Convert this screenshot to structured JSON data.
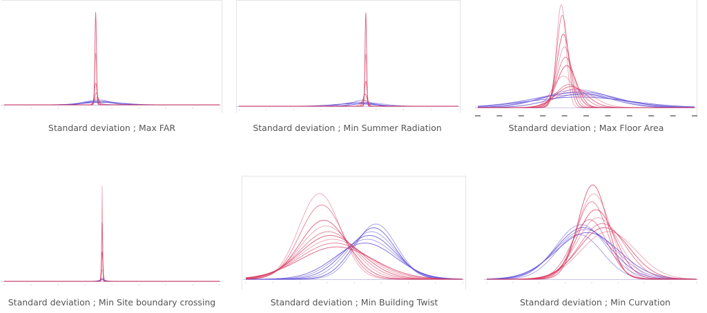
{
  "colors": {
    "red": "#d6335a",
    "blue": "#5a48d6",
    "frame": "#e4e4e4",
    "axis": "#c9c3e6"
  },
  "captions": [
    "Standard deviation ; Max FAR",
    "Standard deviation ; Min Summer Radiation",
    "Standard deviation ; Max Floor Area",
    "Standard deviation ; Min Site boundary crossing",
    "Standard deviation ; Min Building Twist",
    "Standard deviation ; Min Curvation"
  ],
  "chart_data": [
    {
      "type": "line",
      "title": "Standard deviation ; Max FAR",
      "xlim": [
        0,
        1
      ],
      "ylim": [
        0,
        1
      ],
      "grid": false,
      "legend": "none",
      "series": [
        {
          "group": "red",
          "mu": 0.425,
          "sigma": 0.0035,
          "amp": 0.93
        },
        {
          "group": "red",
          "mu": 0.425,
          "sigma": 0.0045,
          "amp": 0.52
        },
        {
          "group": "red",
          "mu": 0.425,
          "sigma": 0.006,
          "amp": 0.22
        },
        {
          "group": "red",
          "mu": 0.428,
          "sigma": 0.008,
          "amp": 0.12
        },
        {
          "group": "red",
          "mu": 0.43,
          "sigma": 0.012,
          "amp": 0.07
        },
        {
          "group": "blue",
          "mu": 0.44,
          "sigma": 0.05,
          "amp": 0.05
        },
        {
          "group": "blue",
          "mu": 0.45,
          "sigma": 0.07,
          "amp": 0.035
        },
        {
          "group": "blue",
          "mu": 0.4,
          "sigma": 0.04,
          "amp": 0.03
        },
        {
          "group": "blue",
          "mu": 0.46,
          "sigma": 0.09,
          "amp": 0.025
        },
        {
          "group": "blue",
          "mu": 0.42,
          "sigma": 0.06,
          "amp": 0.04
        }
      ]
    },
    {
      "type": "line",
      "title": "Standard deviation ; Min Summer Radiation",
      "xlim": [
        0,
        1
      ],
      "ylim": [
        0,
        1
      ],
      "grid": false,
      "legend": "none",
      "series": [
        {
          "group": "red",
          "mu": 0.578,
          "sigma": 0.0035,
          "amp": 0.93
        },
        {
          "group": "red",
          "mu": 0.578,
          "sigma": 0.0045,
          "amp": 0.52
        },
        {
          "group": "red",
          "mu": 0.578,
          "sigma": 0.006,
          "amp": 0.25
        },
        {
          "group": "red",
          "mu": 0.575,
          "sigma": 0.009,
          "amp": 0.12
        },
        {
          "group": "red",
          "mu": 0.57,
          "sigma": 0.014,
          "amp": 0.06
        },
        {
          "group": "blue",
          "mu": 0.56,
          "sigma": 0.04,
          "amp": 0.06
        },
        {
          "group": "blue",
          "mu": 0.54,
          "sigma": 0.06,
          "amp": 0.04
        },
        {
          "group": "blue",
          "mu": 0.58,
          "sigma": 0.05,
          "amp": 0.035
        },
        {
          "group": "blue",
          "mu": 0.52,
          "sigma": 0.09,
          "amp": 0.025
        },
        {
          "group": "blue",
          "mu": 0.6,
          "sigma": 0.07,
          "amp": 0.03
        }
      ]
    },
    {
      "type": "line",
      "title": "Standard deviation ; Max Floor Area",
      "xlim": [
        0,
        1
      ],
      "ylim": [
        0,
        1
      ],
      "grid": false,
      "legend": "none",
      "series": [
        {
          "group": "red",
          "mu": 0.385,
          "sigma": 0.022,
          "amp": 0.98
        },
        {
          "group": "red",
          "mu": 0.39,
          "sigma": 0.026,
          "amp": 0.88
        },
        {
          "group": "red",
          "mu": 0.395,
          "sigma": 0.03,
          "amp": 0.7
        },
        {
          "group": "red",
          "mu": 0.4,
          "sigma": 0.034,
          "amp": 0.58
        },
        {
          "group": "red",
          "mu": 0.405,
          "sigma": 0.04,
          "amp": 0.48
        },
        {
          "group": "red",
          "mu": 0.41,
          "sigma": 0.045,
          "amp": 0.4
        },
        {
          "group": "red",
          "mu": 0.395,
          "sigma": 0.05,
          "amp": 0.3
        },
        {
          "group": "red",
          "mu": 0.42,
          "sigma": 0.06,
          "amp": 0.22
        },
        {
          "group": "red",
          "mu": 0.43,
          "sigma": 0.07,
          "amp": 0.2
        },
        {
          "group": "red",
          "mu": 0.45,
          "sigma": 0.08,
          "amp": 0.18
        },
        {
          "group": "blue",
          "mu": 0.46,
          "sigma": 0.15,
          "amp": 0.17
        },
        {
          "group": "blue",
          "mu": 0.47,
          "sigma": 0.17,
          "amp": 0.15
        },
        {
          "group": "blue",
          "mu": 0.45,
          "sigma": 0.19,
          "amp": 0.14
        },
        {
          "group": "blue",
          "mu": 0.48,
          "sigma": 0.14,
          "amp": 0.13
        },
        {
          "group": "blue",
          "mu": 0.44,
          "sigma": 0.21,
          "amp": 0.12
        },
        {
          "group": "blue",
          "mu": 0.47,
          "sigma": 0.23,
          "amp": 0.1
        }
      ]
    },
    {
      "type": "line",
      "title": "Standard deviation ; Min Site boundary crossing",
      "xlim": [
        0,
        1
      ],
      "ylim": [
        0,
        1
      ],
      "grid": false,
      "legend": "none",
      "series": [
        {
          "group": "red",
          "mu": 0.455,
          "sigma": 0.0018,
          "amp": 0.97
        },
        {
          "group": "red",
          "mu": 0.455,
          "sigma": 0.0025,
          "amp": 0.6
        },
        {
          "group": "red",
          "mu": 0.455,
          "sigma": 0.0035,
          "amp": 0.3
        },
        {
          "group": "red",
          "mu": 0.456,
          "sigma": 0.005,
          "amp": 0.12
        },
        {
          "group": "blue",
          "mu": 0.455,
          "sigma": 0.006,
          "amp": 0.03
        },
        {
          "group": "blue",
          "mu": 0.455,
          "sigma": 0.01,
          "amp": 0.02
        },
        {
          "group": "blue",
          "mu": 0.455,
          "sigma": 0.02,
          "amp": 0.012
        }
      ]
    },
    {
      "type": "line",
      "title": "Standard deviation ; Min Building Twist",
      "xlim": [
        0,
        1
      ],
      "ylim": [
        0,
        1
      ],
      "grid": false,
      "legend": "none",
      "series": [
        {
          "group": "red",
          "mu": 0.34,
          "sigma": 0.095,
          "amp": 0.9
        },
        {
          "group": "red",
          "mu": 0.35,
          "sigma": 0.1,
          "amp": 0.78
        },
        {
          "group": "red",
          "mu": 0.36,
          "sigma": 0.11,
          "amp": 0.62
        },
        {
          "group": "red",
          "mu": 0.37,
          "sigma": 0.12,
          "amp": 0.56
        },
        {
          "group": "red",
          "mu": 0.38,
          "sigma": 0.13,
          "amp": 0.5
        },
        {
          "group": "red",
          "mu": 0.39,
          "sigma": 0.14,
          "amp": 0.46
        },
        {
          "group": "red",
          "mu": 0.4,
          "sigma": 0.15,
          "amp": 0.42
        },
        {
          "group": "red",
          "mu": 0.41,
          "sigma": 0.16,
          "amp": 0.38
        },
        {
          "group": "red",
          "mu": 0.42,
          "sigma": 0.17,
          "amp": 0.34
        },
        {
          "group": "blue",
          "mu": 0.6,
          "sigma": 0.095,
          "amp": 0.58
        },
        {
          "group": "blue",
          "mu": 0.59,
          "sigma": 0.1,
          "amp": 0.54
        },
        {
          "group": "blue",
          "mu": 0.58,
          "sigma": 0.11,
          "amp": 0.5
        },
        {
          "group": "blue",
          "mu": 0.57,
          "sigma": 0.12,
          "amp": 0.46
        },
        {
          "group": "blue",
          "mu": 0.56,
          "sigma": 0.13,
          "amp": 0.42
        },
        {
          "group": "blue",
          "mu": 0.55,
          "sigma": 0.14,
          "amp": 0.38
        }
      ]
    },
    {
      "type": "line",
      "title": "Standard deviation ; Min Curvation",
      "xlim": [
        0,
        1
      ],
      "ylim": [
        0,
        1
      ],
      "grid": false,
      "legend": "none",
      "series": [
        {
          "group": "red",
          "mu": 0.505,
          "sigma": 0.07,
          "amp": 0.95
        },
        {
          "group": "red",
          "mu": 0.51,
          "sigma": 0.08,
          "amp": 0.86
        },
        {
          "group": "red",
          "mu": 0.5,
          "sigma": 0.075,
          "amp": 0.78
        },
        {
          "group": "red",
          "mu": 0.52,
          "sigma": 0.09,
          "amp": 0.7
        },
        {
          "group": "red",
          "mu": 0.53,
          "sigma": 0.1,
          "amp": 0.62
        },
        {
          "group": "red",
          "mu": 0.55,
          "sigma": 0.11,
          "amp": 0.56
        },
        {
          "group": "red",
          "mu": 0.56,
          "sigma": 0.12,
          "amp": 0.52
        },
        {
          "group": "red",
          "mu": 0.58,
          "sigma": 0.13,
          "amp": 0.48
        },
        {
          "group": "red",
          "mu": 0.49,
          "sigma": 0.085,
          "amp": 0.6
        },
        {
          "group": "blue",
          "mu": 0.45,
          "sigma": 0.12,
          "amp": 0.55
        },
        {
          "group": "blue",
          "mu": 0.46,
          "sigma": 0.13,
          "amp": 0.52
        },
        {
          "group": "blue",
          "mu": 0.47,
          "sigma": 0.14,
          "amp": 0.5
        },
        {
          "group": "blue",
          "mu": 0.48,
          "sigma": 0.15,
          "amp": 0.47
        },
        {
          "group": "blue",
          "mu": 0.44,
          "sigma": 0.11,
          "amp": 0.45
        }
      ]
    }
  ]
}
